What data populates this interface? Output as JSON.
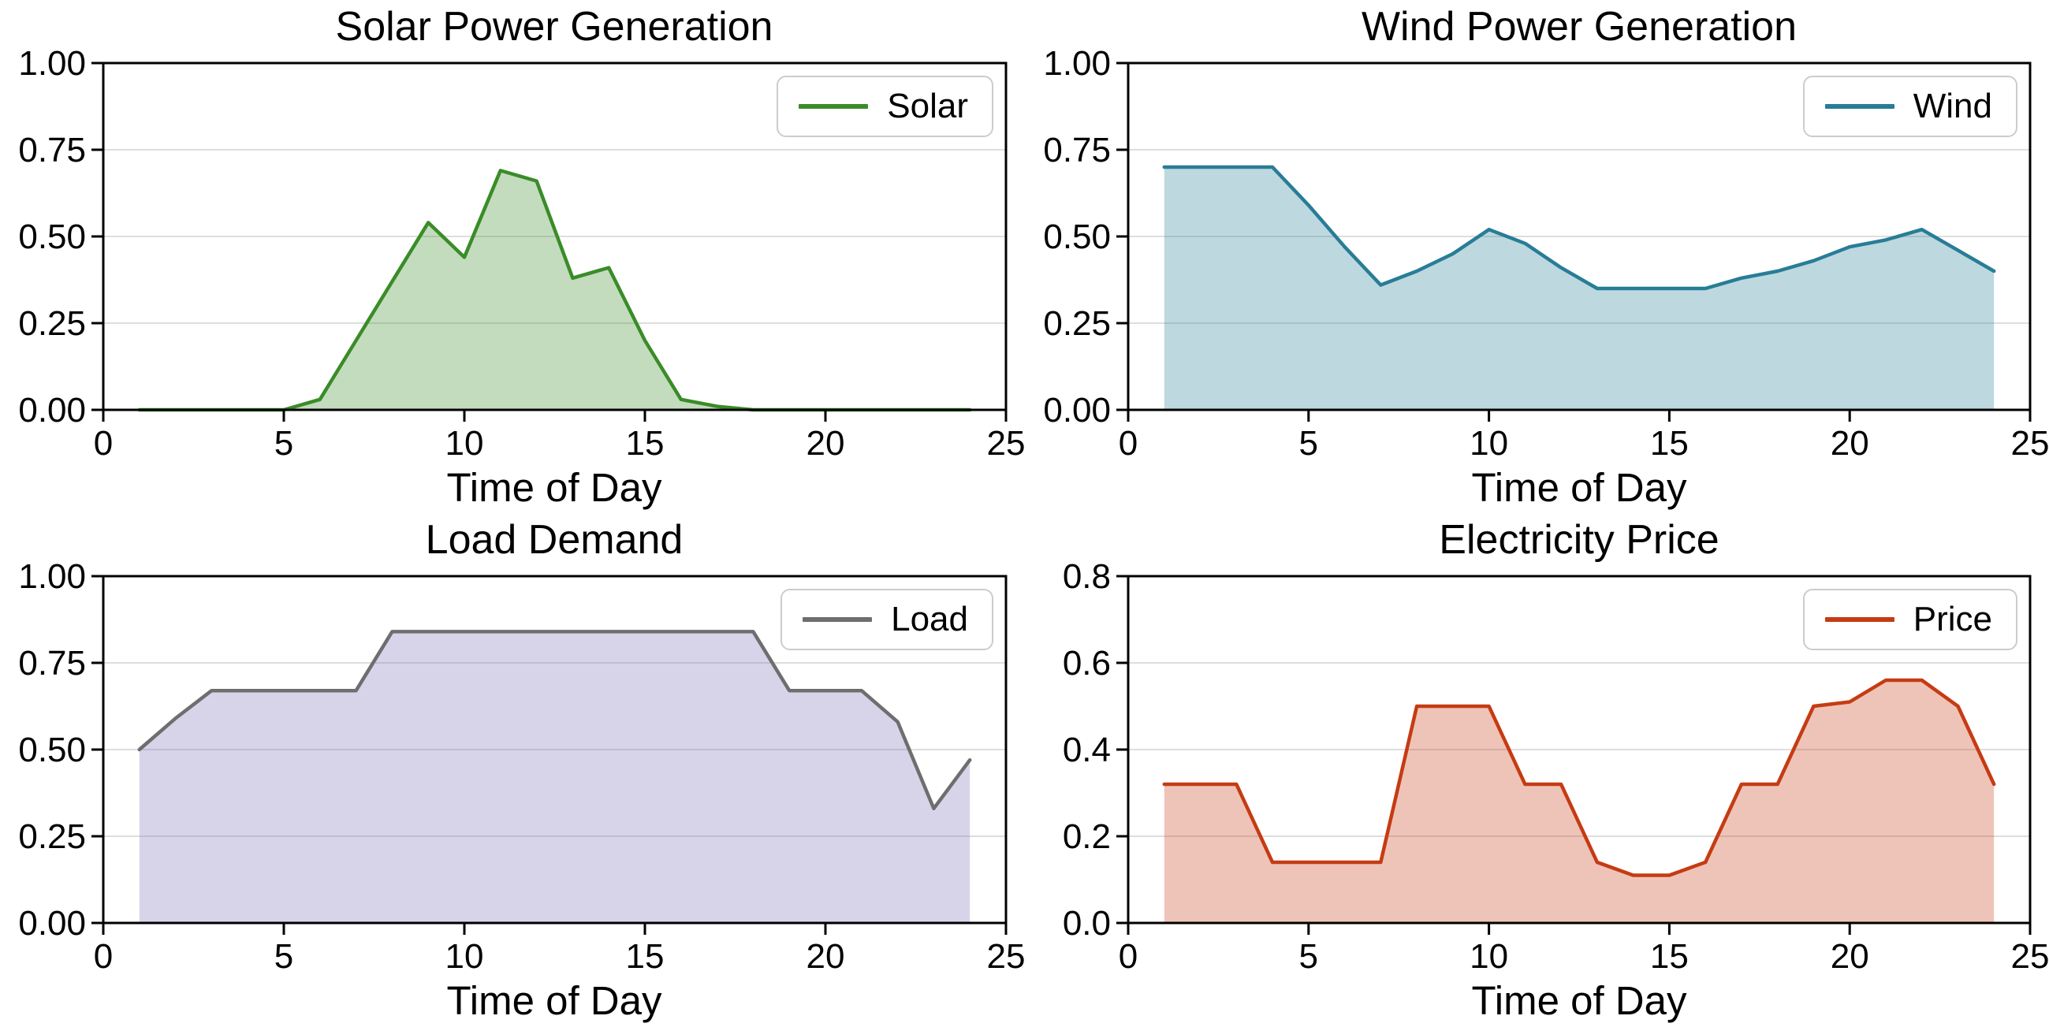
{
  "figure": {
    "background": "#ffffff",
    "text_color": "#000000",
    "grid_color": "#dedede",
    "spine_color": "#000000",
    "legend_border_color": "#cccccc"
  },
  "chart_data": [
    {
      "type": "area",
      "title": "Solar Power Generation",
      "xlabel": "Time of Day",
      "legend_label": "Solar",
      "legend_position": "top-right",
      "line_color": "#3a8c28",
      "fill_color": "#3a8c28",
      "fill_opacity": 0.3,
      "grid": "horizontal",
      "xlim": [
        0,
        25
      ],
      "ylim": [
        0,
        1.0
      ],
      "xtick_values": [
        0,
        5,
        10,
        15,
        20,
        25
      ],
      "xtick_labels": [
        "0",
        "5",
        "10",
        "15",
        "20",
        "25"
      ],
      "ytick_values": [
        0,
        0.25,
        0.5,
        0.75,
        1.0
      ],
      "ytick_labels": [
        "0.00",
        "0.25",
        "0.50",
        "0.75",
        "1.00"
      ],
      "x": [
        1,
        2,
        3,
        4,
        5,
        6,
        7,
        8,
        9,
        10,
        11,
        12,
        13,
        14,
        15,
        16,
        17,
        18,
        19,
        20,
        21,
        22,
        23,
        24
      ],
      "values": [
        0,
        0,
        0,
        0,
        0,
        0.03,
        0.2,
        0.37,
        0.54,
        0.44,
        0.69,
        0.66,
        0.38,
        0.41,
        0.2,
        0.03,
        0.01,
        0,
        0,
        0,
        0,
        0,
        0,
        0
      ]
    },
    {
      "type": "area",
      "title": "Wind Power Generation",
      "xlabel": "Time of Day",
      "legend_label": "Wind",
      "legend_position": "top-right",
      "line_color": "#287d96",
      "fill_color": "#287d96",
      "fill_opacity": 0.3,
      "grid": "horizontal",
      "xlim": [
        0,
        25
      ],
      "ylim": [
        0,
        1.0
      ],
      "xtick_values": [
        0,
        5,
        10,
        15,
        20,
        25
      ],
      "xtick_labels": [
        "0",
        "5",
        "10",
        "15",
        "20",
        "25"
      ],
      "ytick_values": [
        0,
        0.25,
        0.5,
        0.75,
        1.0
      ],
      "ytick_labels": [
        "0.00",
        "0.25",
        "0.50",
        "0.75",
        "1.00"
      ],
      "x": [
        1,
        2,
        3,
        4,
        5,
        6,
        7,
        8,
        9,
        10,
        11,
        12,
        13,
        14,
        15,
        16,
        17,
        18,
        19,
        20,
        21,
        22,
        23,
        24
      ],
      "values": [
        0.7,
        0.7,
        0.7,
        0.7,
        0.59,
        0.47,
        0.36,
        0.4,
        0.45,
        0.52,
        0.48,
        0.41,
        0.35,
        0.35,
        0.35,
        0.35,
        0.38,
        0.4,
        0.43,
        0.47,
        0.49,
        0.52,
        0.46,
        0.4
      ]
    },
    {
      "type": "area",
      "title": "Load Demand",
      "xlabel": "Time of Day",
      "legend_label": "Load",
      "legend_position": "top-right",
      "line_color": "#6e6e6e",
      "fill_color": "#7a70b8",
      "fill_opacity": 0.3,
      "grid": "horizontal",
      "xlim": [
        0,
        25
      ],
      "ylim": [
        0,
        1.0
      ],
      "xtick_values": [
        0,
        5,
        10,
        15,
        20,
        25
      ],
      "xtick_labels": [
        "0",
        "5",
        "10",
        "15",
        "20",
        "25"
      ],
      "ytick_values": [
        0,
        0.25,
        0.5,
        0.75,
        1.0
      ],
      "ytick_labels": [
        "0.00",
        "0.25",
        "0.50",
        "0.75",
        "1.00"
      ],
      "x": [
        1,
        2,
        3,
        4,
        5,
        6,
        7,
        8,
        9,
        10,
        11,
        12,
        13,
        14,
        15,
        16,
        17,
        18,
        19,
        20,
        21,
        22,
        23,
        24
      ],
      "values": [
        0.5,
        0.59,
        0.67,
        0.67,
        0.67,
        0.67,
        0.67,
        0.84,
        0.84,
        0.84,
        0.84,
        0.84,
        0.84,
        0.84,
        0.84,
        0.84,
        0.84,
        0.84,
        0.67,
        0.67,
        0.67,
        0.58,
        0.33,
        0.47
      ]
    },
    {
      "type": "area",
      "title": "Electricity Price",
      "xlabel": "Time of Day",
      "legend_label": "Price",
      "legend_position": "top-right",
      "line_color": "#c63b13",
      "fill_color": "#c63b13",
      "fill_opacity": 0.3,
      "grid": "horizontal",
      "xlim": [
        0,
        25
      ],
      "ylim": [
        0,
        0.8
      ],
      "xtick_values": [
        0,
        5,
        10,
        15,
        20,
        25
      ],
      "xtick_labels": [
        "0",
        "5",
        "10",
        "15",
        "20",
        "25"
      ],
      "ytick_values": [
        0,
        0.2,
        0.4,
        0.6,
        0.8
      ],
      "ytick_labels": [
        "0.0",
        "0.2",
        "0.4",
        "0.6",
        "0.8"
      ],
      "x": [
        1,
        2,
        3,
        4,
        5,
        6,
        7,
        8,
        9,
        10,
        11,
        12,
        13,
        14,
        15,
        16,
        17,
        18,
        19,
        20,
        21,
        22,
        23,
        24
      ],
      "values": [
        0.32,
        0.32,
        0.32,
        0.14,
        0.14,
        0.14,
        0.14,
        0.5,
        0.5,
        0.5,
        0.32,
        0.32,
        0.14,
        0.11,
        0.11,
        0.14,
        0.32,
        0.32,
        0.5,
        0.51,
        0.56,
        0.56,
        0.5,
        0.32
      ]
    }
  ]
}
